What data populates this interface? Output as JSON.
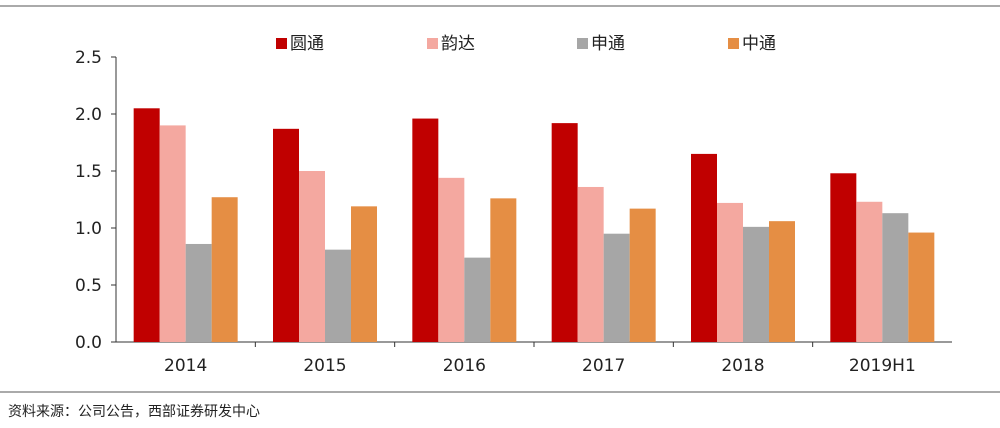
{
  "chart_data": {
    "type": "bar",
    "categories": [
      "2014",
      "2015",
      "2016",
      "2017",
      "2018",
      "2019H1"
    ],
    "series": [
      {
        "name": "圆通",
        "values": [
          2.05,
          1.87,
          1.96,
          1.92,
          1.65,
          1.48
        ]
      },
      {
        "name": "韵达",
        "values": [
          1.9,
          1.5,
          1.44,
          1.36,
          1.22,
          1.23
        ]
      },
      {
        "name": "申通",
        "values": [
          0.86,
          0.81,
          0.74,
          0.95,
          1.01,
          1.13
        ]
      },
      {
        "name": "中通",
        "values": [
          1.27,
          1.19,
          1.26,
          1.17,
          1.06,
          0.96
        ]
      }
    ],
    "colors": [
      "#c00000",
      "#f4a8a0",
      "#a6a6a6",
      "#e58e44"
    ],
    "ylim": [
      0,
      2.5
    ],
    "yticks": [
      "0.0",
      "0.5",
      "1.0",
      "1.5",
      "2.0",
      "2.5"
    ],
    "grid": false,
    "legend_position": "top"
  },
  "source_text": "资料来源：公司公告，西部证券研发中心"
}
